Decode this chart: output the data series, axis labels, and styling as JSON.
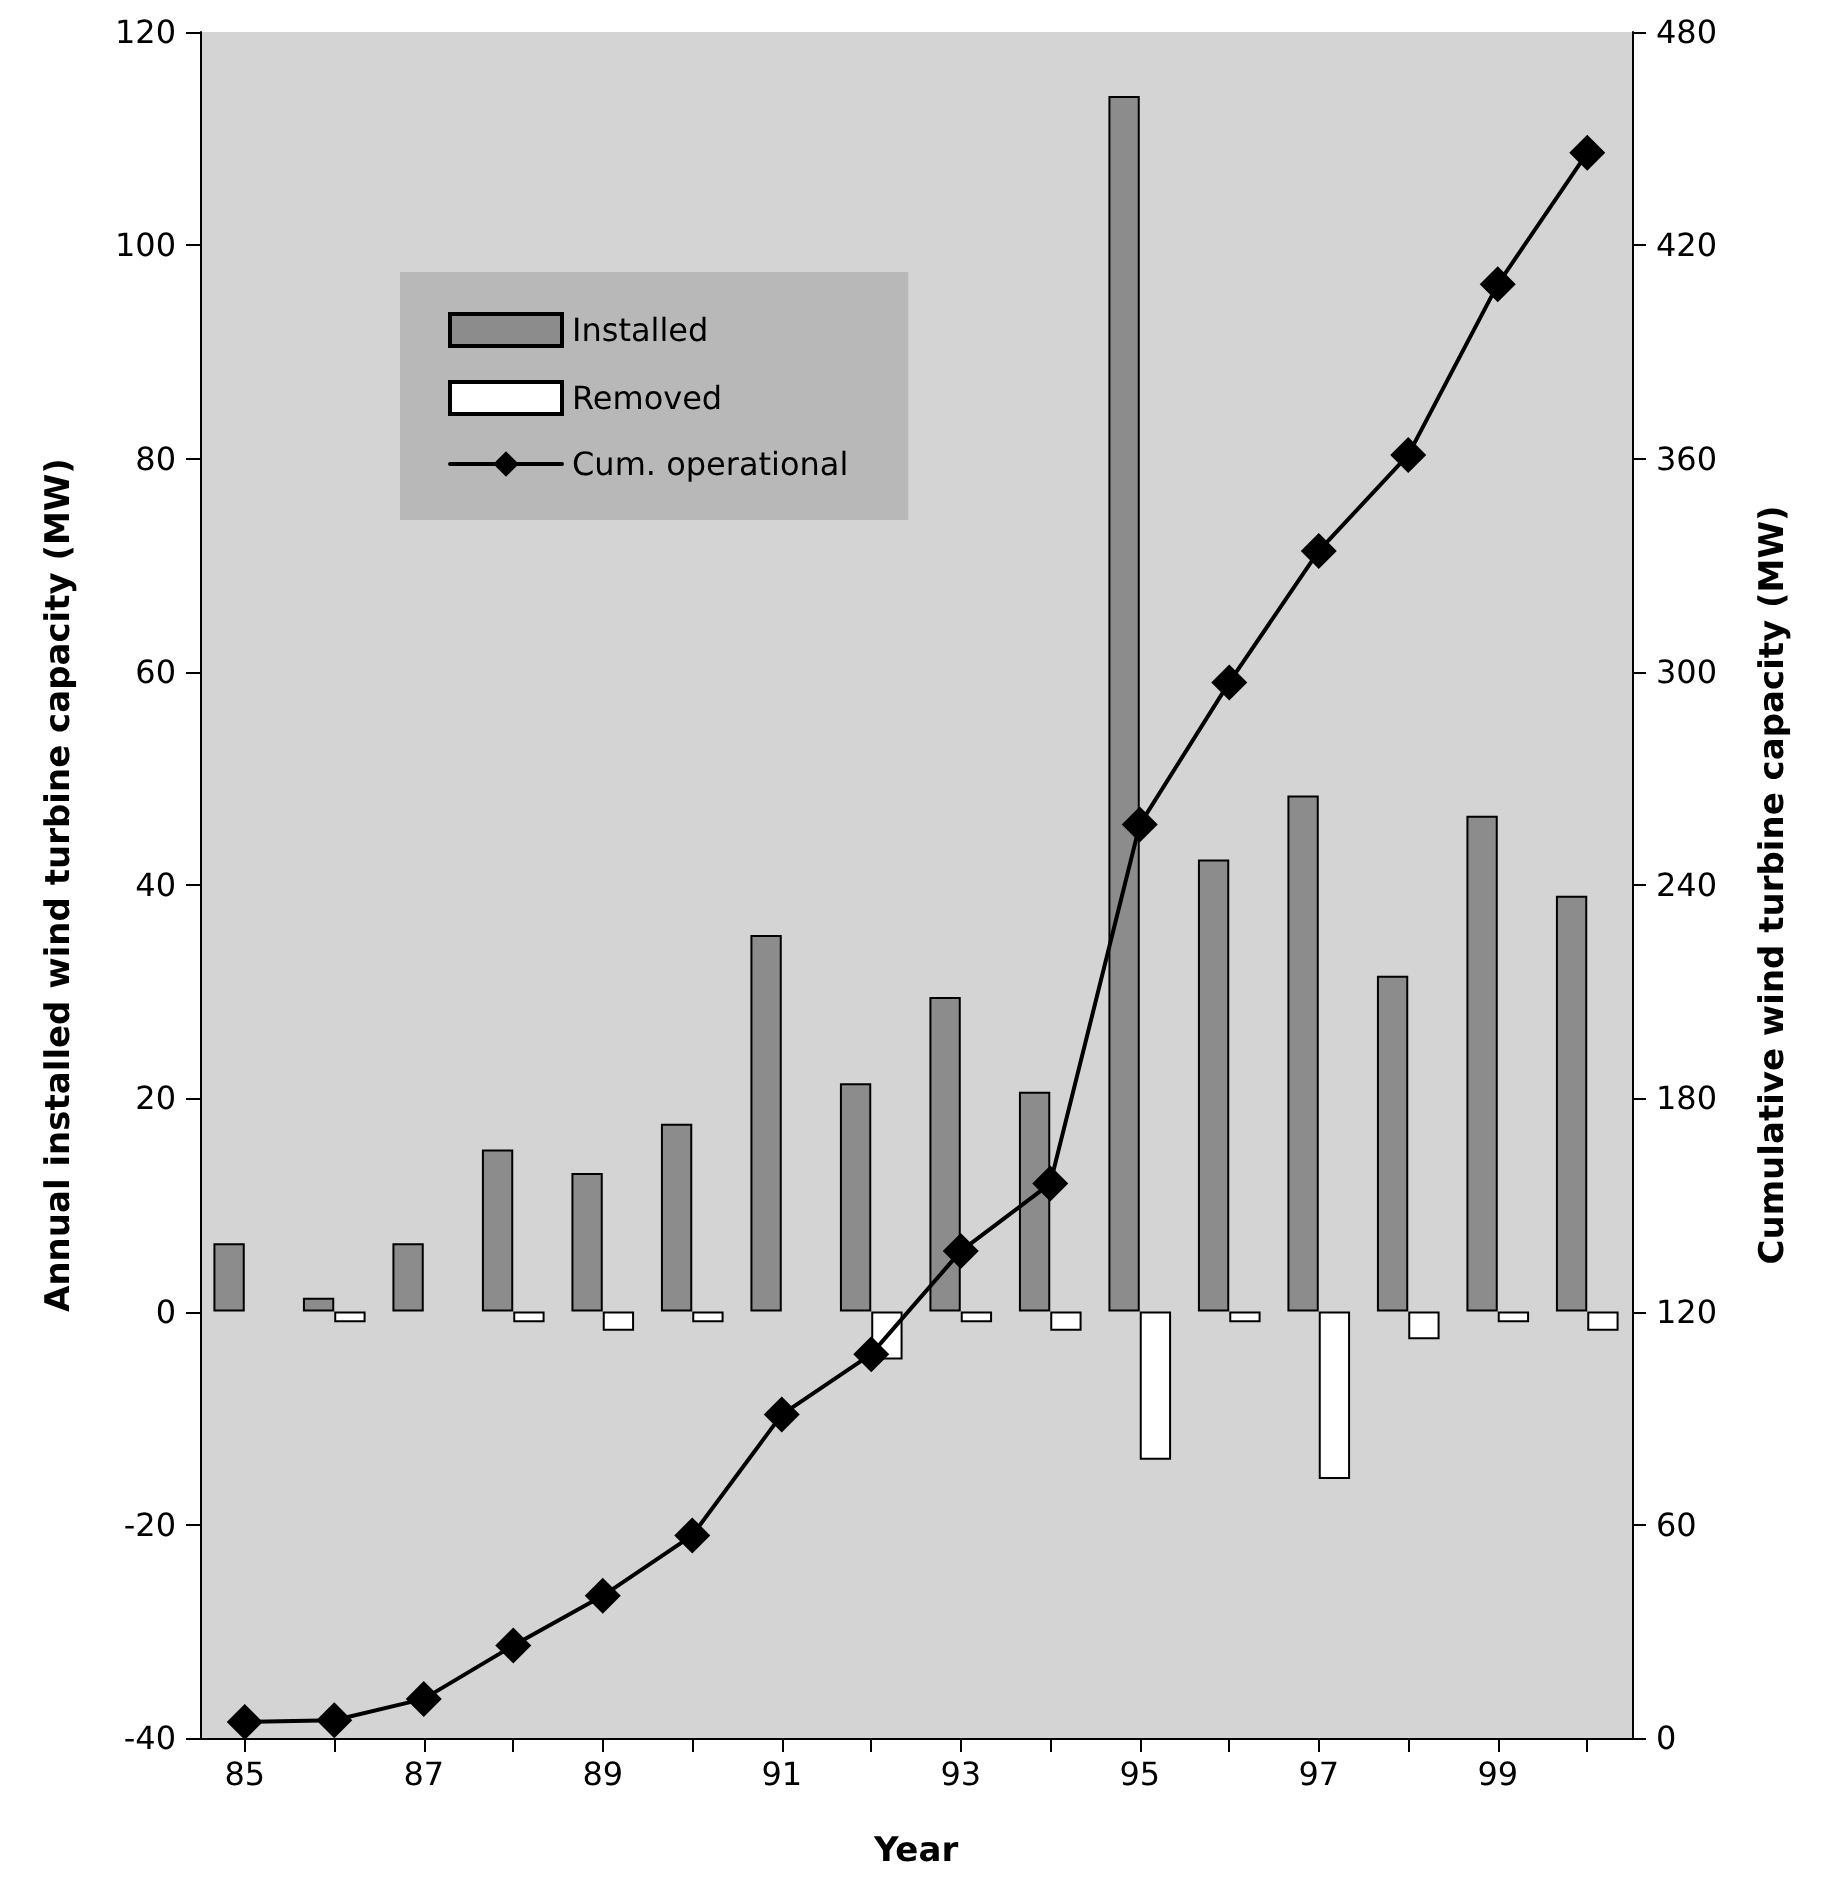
{
  "chart_data": {
    "type": "bar",
    "xlabel": "Year",
    "ylabel": "Annual installed wind turbine capacity (MW)",
    "y2label": "Cumulative wind turbine capacity (MW)",
    "categories": [
      "85",
      null,
      "87",
      null,
      "89",
      null,
      "91",
      null,
      "93",
      null,
      "95",
      null,
      "97",
      null,
      "99",
      null
    ],
    "series": [
      {
        "name": "Installed",
        "color": "#8c8c8c",
        "values": [
          6.4,
          1.3,
          6.4,
          15.2,
          13,
          17.6,
          35.3,
          21.4,
          29.5,
          20.6,
          114,
          42.4,
          48.4,
          31.5,
          46.5,
          39
        ]
      },
      {
        "name": "Removed",
        "color": "#ffffff",
        "values": [
          null,
          -1,
          null,
          -1,
          -1.8,
          -1,
          null,
          -4.5,
          -1,
          -1.8,
          -13.9,
          -1,
          -15.7,
          -2.6,
          -1,
          -1.8
        ]
      },
      {
        "name": "Cum. operational",
        "type": "line",
        "axis": "y2",
        "color": "#000000",
        "values": [
          4.5,
          5,
          11,
          26,
          40,
          57,
          91,
          108,
          137,
          156,
          257,
          297,
          334,
          361,
          409,
          446
        ]
      }
    ],
    "ylim": [
      -40,
      120
    ],
    "yticks": [
      -40,
      -20,
      0,
      20,
      40,
      60,
      80,
      100,
      120
    ],
    "y2lim": [
      0,
      480
    ],
    "y2ticks": [
      0,
      60,
      120,
      180,
      240,
      300,
      360,
      420,
      480
    ],
    "grid": false,
    "legend": "top left",
    "marker": "diamond",
    "line_style": "solid"
  }
}
